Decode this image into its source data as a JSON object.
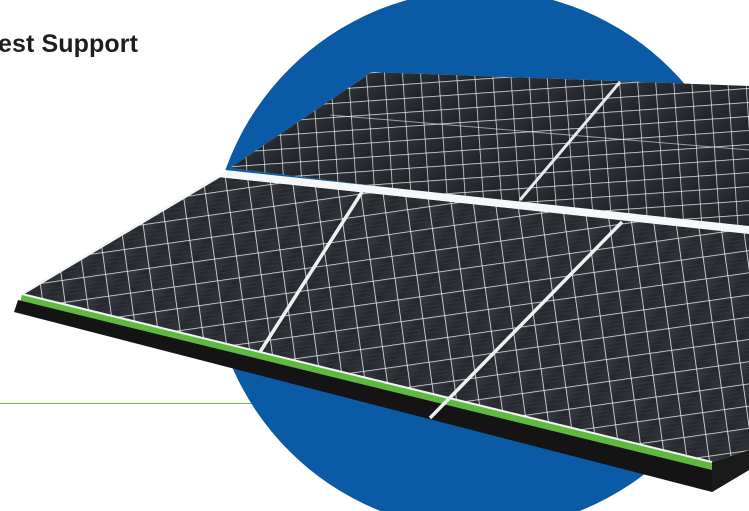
{
  "section": {
    "heading": "est Support"
  },
  "colors": {
    "accent_circle": "#0b5aa6",
    "accent_line": "#7ab648",
    "panel_frame": "#5fb840",
    "panel_cell": "#2c2f33",
    "panel_grid": "#e8ecef",
    "heading_text": "#1e1e1e"
  },
  "hero": {
    "image": "solar-panel",
    "backdrop": "blue-circle"
  }
}
